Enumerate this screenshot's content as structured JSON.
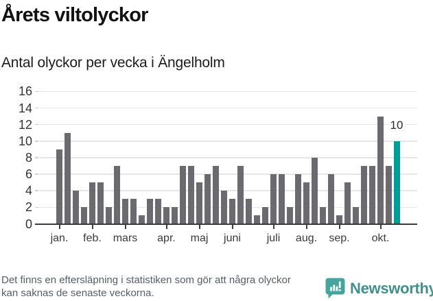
{
  "header": {
    "title": "Årets viltolyckor",
    "subtitle": "Antal olyckor per vecka i Ängelholm"
  },
  "chart_data": {
    "type": "bar",
    "title": "Årets viltolyckor",
    "subtitle": "Antal olyckor per vecka i Ängelholm",
    "values": [
      9,
      11,
      4,
      2,
      5,
      5,
      2,
      7,
      3,
      3,
      1,
      3,
      3,
      2,
      2,
      7,
      7,
      5,
      6,
      7,
      4,
      3,
      7,
      3,
      1,
      2,
      6,
      6,
      2,
      6,
      5,
      8,
      2,
      6,
      1,
      5,
      2,
      7,
      7,
      13,
      7,
      10
    ],
    "highlight_index": 41,
    "highlight_label": "10",
    "y_ticks": [
      0,
      2,
      4,
      6,
      8,
      10,
      12,
      14,
      16
    ],
    "ylim": [
      0,
      16
    ],
    "x_tick_labels": [
      "jan.",
      "feb.",
      "mars",
      "apr.",
      "maj",
      "juni",
      "juli",
      "aug.",
      "sep.",
      "okt."
    ],
    "x_tick_bar_index": [
      0,
      4,
      8,
      13,
      17,
      21,
      26,
      30,
      34,
      39
    ],
    "grid": true,
    "legend": "none",
    "bar_color": "#6b6a70",
    "highlight_color": "#009c98"
  },
  "footer": {
    "note": "Det finns en eftersläpning i statistiken som gör att några olyckor kan saknas de senaste veckorna.",
    "brand": "Newsworthy",
    "brand_color": "#41908b",
    "brand_icon": "speech-bubble-bar-chart",
    "brand_icon_color": "#46a59e"
  }
}
